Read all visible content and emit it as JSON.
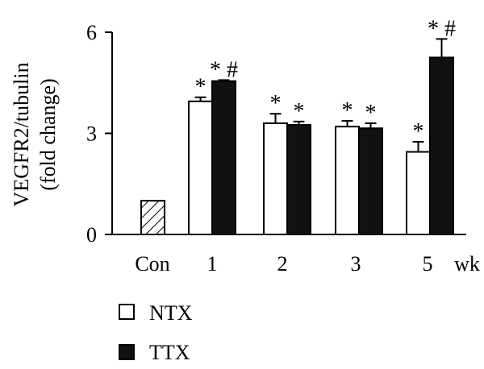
{
  "chart_data": {
    "type": "bar",
    "ylabel_lines": [
      "VEGFR2/tubulin",
      "(fold change)"
    ],
    "xunit": "wk",
    "ylim": [
      0,
      6
    ],
    "yticks": [
      0,
      3,
      6
    ],
    "ytick_labels": [
      "0",
      "3",
      "6"
    ],
    "grid": false,
    "legend_position": "bottom-left",
    "control": {
      "label": "Con",
      "value": 1.0,
      "fill": "hatched"
    },
    "categories": [
      "1",
      "2",
      "3",
      "5"
    ],
    "series": [
      {
        "name": "NTX",
        "color": "#ffffff",
        "values": [
          3.95,
          3.3,
          3.2,
          2.45
        ],
        "errors": [
          0.12,
          0.28,
          0.17,
          0.3
        ],
        "markers": [
          "*",
          "*",
          "*",
          "*"
        ]
      },
      {
        "name": "TTX",
        "color": "#111111",
        "values": [
          4.55,
          3.25,
          3.15,
          5.25
        ],
        "errors": [
          0.03,
          0.1,
          0.15,
          0.55
        ],
        "markers": [
          "* #",
          "*",
          "*",
          "* #"
        ]
      }
    ]
  }
}
